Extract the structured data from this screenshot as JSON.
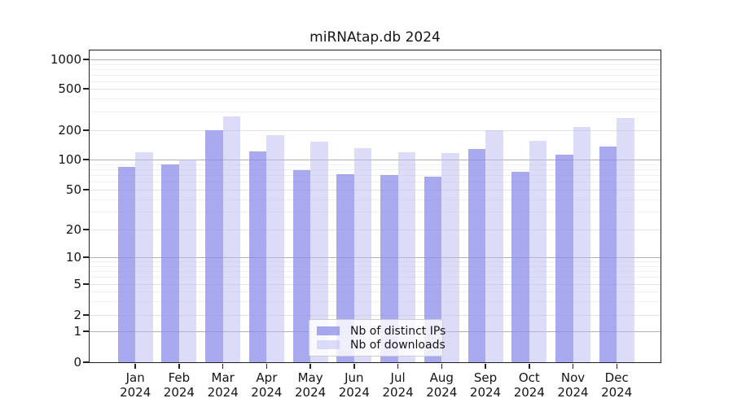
{
  "title": "miRNAtap.db 2024",
  "chart_data": {
    "type": "bar",
    "title": "miRNAtap.db 2024",
    "categories": [
      "Jan",
      "Feb",
      "Mar",
      "Apr",
      "May",
      "Jun",
      "Jul",
      "Aug",
      "Sep",
      "Oct",
      "Nov",
      "Dec"
    ],
    "year_suffix": "2024",
    "series": [
      {
        "name": "Nb of distinct IPs",
        "values": [
          85,
          89,
          200,
          122,
          79,
          72,
          70,
          67,
          128,
          76,
          112,
          136
        ]
      },
      {
        "name": "Nb of downloads",
        "values": [
          118,
          100,
          272,
          179,
          153,
          132,
          120,
          117,
          200,
          155,
          216,
          262
        ]
      }
    ],
    "yscale": "symlog",
    "y_ticks": [
      0,
      1,
      2,
      5,
      10,
      20,
      50,
      100,
      200,
      500,
      1000
    ],
    "ylim": [
      0,
      1200
    ],
    "xlabel": "",
    "ylabel": "",
    "grid": true,
    "legend_position": "lower center"
  },
  "colors": {
    "ip_bar": "rgba(140,140,235,0.75)",
    "downloads_bar": "rgba(185,185,241,0.5)",
    "grid_major_dark": "#b0b0b0",
    "grid_major_light": "#e1e1e1",
    "grid_minor": "#efefef",
    "axis": "#1f1f1f",
    "text": "#141414"
  }
}
